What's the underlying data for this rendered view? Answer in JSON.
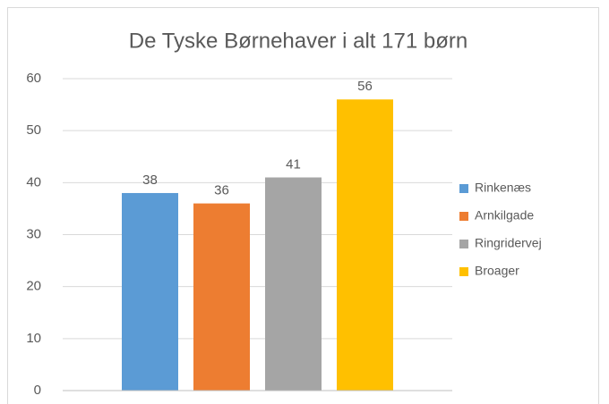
{
  "chart_data": {
    "type": "bar",
    "title": "De Tyske Børnehaver i alt 171 børn",
    "categories": [
      null
    ],
    "series": [
      {
        "name": "Rinkenæs",
        "color": "#5b9bd5",
        "values": [
          38
        ]
      },
      {
        "name": "Arnkilgade",
        "color": "#ed7d31",
        "values": [
          36
        ]
      },
      {
        "name": "Ringridervej",
        "color": "#a5a5a5",
        "values": [
          41
        ]
      },
      {
        "name": "Broager",
        "color": "#ffc000",
        "values": [
          56
        ]
      }
    ],
    "ylim": [
      0,
      60
    ],
    "yticks": [
      0,
      10,
      20,
      30,
      40,
      50,
      60
    ],
    "grid": true,
    "legend": "right"
  }
}
